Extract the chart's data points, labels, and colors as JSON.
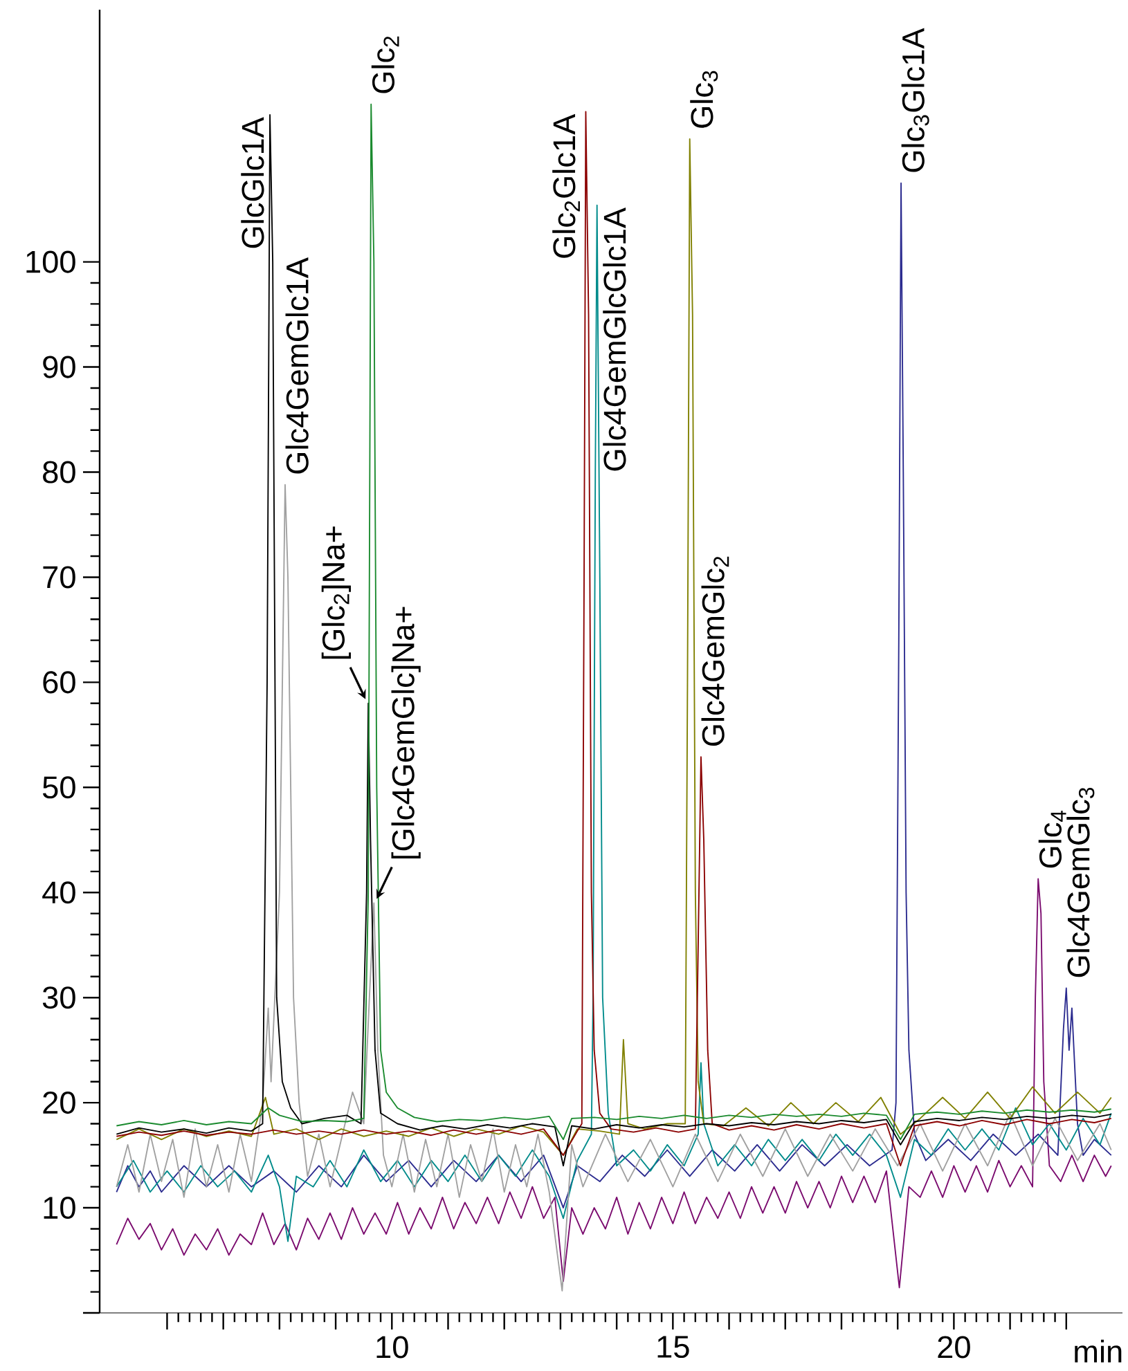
{
  "chart_data": {
    "type": "line",
    "xlabel": "min",
    "xlim": [
      4.8,
      23
    ],
    "ylim": [
      0,
      124
    ],
    "xticks": [
      {
        "value": 6,
        "label": null
      },
      {
        "value": 7,
        "label": null
      },
      {
        "value": 8,
        "label": null
      },
      {
        "value": 9,
        "label": null
      },
      10,
      {
        "value": 11,
        "label": null
      },
      {
        "value": 12,
        "label": null
      },
      {
        "value": 13,
        "label": null
      },
      {
        "value": 14,
        "label": null
      },
      15,
      {
        "value": 16,
        "label": null
      },
      {
        "value": 17,
        "label": null
      },
      {
        "value": 18,
        "label": null
      },
      {
        "value": 19,
        "label": null
      },
      20,
      {
        "value": 21,
        "label": null
      },
      {
        "value": 22,
        "label": null
      }
    ],
    "yticks": [
      {
        "value": 0,
        "label": null
      },
      10,
      20,
      30,
      40,
      50,
      60,
      70,
      80,
      90,
      100
    ],
    "annotations": [
      {
        "text": "GlcGlc1A",
        "x": 7.83,
        "y": 114
      },
      {
        "text": "Glc4GemGlc1A",
        "x": 8.1,
        "y": 78.8
      },
      {
        "text": "Glc$_{2}$",
        "x": 9.63,
        "y": 115
      },
      {
        "text": "[Glc$_{2}$]Na+",
        "x": 9.58,
        "y": 58
      },
      {
        "text": "[Glc4GemGlc]Na+",
        "x": 9.68,
        "y": 39
      },
      {
        "text": "Glc$_{2}$Glc1A",
        "x": 13.45,
        "y": 114.3
      },
      {
        "text": "Glc4GemGlcGlc1A",
        "x": 13.65,
        "y": 105.4
      },
      {
        "text": "Glc$_{3}$",
        "x": 15.3,
        "y": 111.7
      },
      {
        "text": "Glc4GemGlc$_{2}$",
        "x": 15.5,
        "y": 52.9
      },
      {
        "text": "Glc$_{3}$Glc1A",
        "x": 19.06,
        "y": 107.5
      },
      {
        "text": "Glc$_{4}$",
        "x": 21.5,
        "y": 41.3
      },
      {
        "text": "Glc4GemGlc$_{3}$",
        "x": 22.0,
        "y": 30.9
      }
    ],
    "series": [
      {
        "color": "#7a0a6e",
        "x": [
          5.1,
          5.3,
          5.5,
          5.7,
          5.9,
          6.1,
          6.3,
          6.5,
          6.7,
          6.9,
          7.1,
          7.3,
          7.5,
          7.7,
          7.9,
          8.1,
          8.3,
          8.5,
          8.7,
          8.9,
          9.1,
          9.3,
          9.5,
          9.7,
          9.9,
          10.1,
          10.3,
          10.5,
          10.7,
          10.9,
          11.1,
          11.3,
          11.5,
          11.7,
          11.9,
          12.1,
          12.3,
          12.5,
          12.7,
          12.9,
          13.05,
          13.2,
          13.4,
          13.6,
          13.8,
          14.0,
          14.2,
          14.4,
          14.6,
          14.8,
          15.0,
          15.2,
          15.4,
          15.6,
          15.8,
          16.0,
          16.2,
          16.4,
          16.6,
          16.8,
          17.0,
          17.2,
          17.4,
          17.6,
          17.8,
          18.0,
          18.2,
          18.4,
          18.6,
          18.8,
          19.03,
          19.2,
          19.4,
          19.6,
          19.8,
          20.0,
          20.2,
          20.4,
          20.6,
          20.8,
          21.0,
          21.2,
          21.4,
          21.45,
          21.5,
          21.55,
          21.6,
          21.7,
          21.9,
          22.1,
          22.3,
          22.5,
          22.7,
          22.8
        ],
        "values": [
          6.5,
          9,
          7,
          8.5,
          6,
          8,
          5.5,
          7.5,
          6,
          8,
          5.5,
          7.5,
          6.5,
          9.5,
          6.5,
          8.5,
          6,
          9,
          7,
          9.5,
          7,
          10,
          7.5,
          9.5,
          7.5,
          10.5,
          7.5,
          10,
          8,
          11,
          8,
          10.5,
          8.5,
          11,
          8.5,
          11.5,
          9,
          12,
          9,
          11,
          3,
          10,
          7.5,
          10,
          8,
          11,
          7.5,
          10.5,
          8,
          11,
          8.5,
          11.5,
          8.5,
          11,
          9,
          11.5,
          9,
          12,
          9.5,
          12,
          9.5,
          12.5,
          10,
          12.5,
          10,
          13,
          10.5,
          13,
          10.5,
          13.5,
          2.4,
          12,
          11,
          13.5,
          11,
          14,
          11.5,
          14,
          11.5,
          14.5,
          12,
          14,
          12,
          30,
          41.3,
          38,
          22,
          14,
          12.5,
          15,
          12.5,
          15,
          13,
          14
        ]
      },
      {
        "color": "#2b2b8f",
        "x": [
          5.1,
          5.3,
          5.5,
          5.7,
          5.9,
          6.3,
          6.7,
          7.1,
          7.5,
          7.9,
          8.3,
          8.7,
          9.1,
          9.5,
          9.9,
          10.3,
          10.7,
          11.1,
          11.5,
          11.9,
          12.3,
          12.7,
          13.05,
          13.3,
          13.7,
          14.1,
          14.5,
          14.9,
          15.3,
          15.7,
          16.1,
          16.5,
          16.9,
          17.3,
          17.7,
          18.1,
          18.5,
          18.9,
          18.97,
          19.02,
          19.06,
          19.1,
          19.15,
          19.2,
          19.3,
          19.5,
          19.9,
          20.3,
          20.7,
          21.1,
          21.5,
          21.85,
          21.95,
          22.0,
          22.05,
          22.1,
          22.2,
          22.3,
          22.5,
          22.8
        ],
        "values": [
          11.5,
          14,
          12,
          13.5,
          11.5,
          14,
          12,
          14,
          12,
          13.5,
          11.5,
          14,
          12,
          15,
          12.5,
          14.5,
          12,
          14.5,
          12.5,
          15,
          12.5,
          15,
          10,
          14,
          12.5,
          15,
          13,
          15.5,
          13,
          15.5,
          13.5,
          16,
          13.5,
          16,
          14,
          16,
          14,
          15.5,
          20,
          64,
          107.5,
          80,
          40,
          25,
          17,
          14.5,
          16.5,
          14.5,
          17,
          15,
          17,
          15,
          27,
          30.9,
          25,
          29,
          18,
          15,
          16.5,
          15
        ]
      },
      {
        "color": "#008b8b",
        "x": [
          5.1,
          5.4,
          5.7,
          6.0,
          6.3,
          6.6,
          6.9,
          7.2,
          7.5,
          7.8,
          8.0,
          8.15,
          8.3,
          8.6,
          8.9,
          9.2,
          9.5,
          9.8,
          10.1,
          10.4,
          10.7,
          11.0,
          11.3,
          11.6,
          11.9,
          12.2,
          12.5,
          12.8,
          13.05,
          13.3,
          13.55,
          13.58,
          13.62,
          13.65,
          13.7,
          13.75,
          13.85,
          14.0,
          14.3,
          14.6,
          14.9,
          15.2,
          15.45,
          15.5,
          15.55,
          15.8,
          16.1,
          16.4,
          16.7,
          17.0,
          17.3,
          17.6,
          17.9,
          18.2,
          18.5,
          18.8,
          19.05,
          19.3,
          19.6,
          19.9,
          20.2,
          20.5,
          20.8,
          21.1,
          21.4,
          21.7,
          22.0,
          22.3,
          22.6,
          22.8
        ],
        "values": [
          12,
          14.5,
          11.5,
          13.5,
          11.5,
          14,
          12,
          13.5,
          11.5,
          15,
          12,
          6.8,
          13,
          12,
          14.5,
          12,
          15.5,
          12.5,
          14.5,
          12,
          14.5,
          12.5,
          15,
          12.5,
          15,
          13,
          15.5,
          13,
          9,
          14.5,
          17,
          30,
          80,
          105.4,
          70,
          30,
          19,
          14,
          15.5,
          13.5,
          16,
          14,
          17,
          23.8,
          18,
          14,
          16,
          14,
          16.5,
          14.5,
          16.5,
          14.5,
          17,
          15,
          17,
          15,
          11,
          16.5,
          15,
          17.5,
          15.5,
          17.5,
          15.5,
          19.5,
          16,
          18,
          15.5,
          18.5,
          16,
          19
        ]
      },
      {
        "color": "#a0a0a0",
        "x": [
          5.1,
          5.3,
          5.5,
          5.7,
          5.9,
          6.1,
          6.3,
          6.5,
          6.7,
          6.9,
          7.1,
          7.3,
          7.5,
          7.7,
          7.8,
          7.85,
          8.0,
          8.1,
          8.15,
          8.25,
          8.35,
          8.5,
          8.7,
          8.9,
          9.1,
          9.3,
          9.5,
          9.6,
          9.68,
          9.75,
          9.85,
          10.0,
          10.2,
          10.4,
          10.6,
          10.8,
          11.0,
          11.2,
          11.4,
          11.6,
          11.8,
          12.0,
          12.2,
          12.4,
          12.6,
          12.8,
          13.03,
          13.2,
          13.4,
          13.8,
          14.2,
          14.6,
          15.0,
          15.4,
          15.8,
          16.2,
          16.6,
          17.0,
          17.4,
          17.8,
          18.2,
          18.6,
          19.0,
          19.4,
          19.8,
          20.2,
          20.6,
          21.0,
          21.4,
          21.8,
          22.2,
          22.6,
          22.8
        ],
        "values": [
          12,
          16,
          11.5,
          17,
          12.5,
          16.5,
          11,
          17.5,
          12,
          16,
          11.5,
          17,
          12.5,
          20,
          29,
          22,
          40,
          78.8,
          70,
          30,
          20,
          13,
          17,
          12,
          16.5,
          21,
          18,
          30,
          39,
          25,
          15,
          12,
          17,
          11.5,
          16.5,
          12,
          17,
          11,
          16,
          12.5,
          17.5,
          11.5,
          16,
          12,
          17,
          11.5,
          2.1,
          16,
          12,
          17,
          12.5,
          16.5,
          12,
          17,
          12.5,
          17,
          13,
          17.5,
          13,
          17,
          13.5,
          17.5,
          14,
          18,
          13.5,
          18,
          14,
          19,
          14,
          18.5,
          14.5,
          18,
          15.5
        ]
      },
      {
        "color": "#808000",
        "x": [
          5.1,
          5.5,
          5.9,
          6.3,
          6.7,
          7.1,
          7.5,
          7.75,
          7.9,
          8.3,
          8.7,
          9.1,
          9.5,
          9.9,
          10.3,
          10.7,
          11.1,
          11.5,
          11.9,
          12.3,
          12.7,
          13.05,
          13.3,
          13.7,
          14.05,
          14.12,
          14.2,
          14.5,
          14.9,
          15.22,
          15.26,
          15.3,
          15.35,
          15.4,
          15.45,
          15.55,
          15.9,
          16.3,
          16.7,
          17.1,
          17.5,
          17.9,
          18.3,
          18.7,
          19.05,
          19.4,
          19.8,
          20.2,
          20.6,
          21.0,
          21.4,
          21.8,
          22.2,
          22.6,
          22.8
        ],
        "values": [
          16.5,
          17.5,
          16.5,
          17.5,
          16.8,
          17.3,
          16.8,
          20.5,
          17,
          17.5,
          16.5,
          17.5,
          16.8,
          17.3,
          16.8,
          17.6,
          16.8,
          17.5,
          17,
          17.8,
          17.2,
          15,
          17.5,
          17.3,
          17,
          26,
          18,
          17.5,
          18,
          18,
          60,
          111.7,
          95,
          40,
          22,
          18,
          17.8,
          19.5,
          17.8,
          20,
          18,
          20,
          18.2,
          20.5,
          17,
          18.5,
          20.5,
          18.5,
          21,
          18.5,
          21.5,
          19,
          21,
          19,
          20.5
        ]
      },
      {
        "color": "#8b0000",
        "x": [
          5.1,
          5.5,
          5.9,
          6.3,
          6.7,
          7.1,
          7.5,
          7.9,
          8.3,
          8.7,
          9.1,
          9.5,
          9.9,
          10.3,
          10.7,
          11.1,
          11.5,
          11.9,
          12.3,
          12.7,
          13.05,
          13.3,
          13.38,
          13.42,
          13.45,
          13.5,
          13.55,
          13.6,
          13.7,
          13.9,
          14.3,
          14.7,
          15.1,
          15.4,
          15.45,
          15.5,
          15.55,
          15.62,
          15.7,
          16.0,
          16.4,
          16.8,
          17.2,
          17.6,
          18.0,
          18.4,
          18.8,
          19.05,
          19.3,
          19.7,
          20.1,
          20.5,
          20.9,
          21.3,
          21.7,
          22.1,
          22.5,
          22.8
        ],
        "values": [
          16.8,
          17.2,
          16.9,
          17.3,
          16.9,
          17.2,
          17,
          17.4,
          17,
          17.3,
          17,
          17.4,
          17,
          17.3,
          16.9,
          17.4,
          17,
          17.4,
          17,
          17.5,
          15,
          17.3,
          18,
          70,
          114.3,
          95,
          40,
          25,
          19,
          17.5,
          17.2,
          17.6,
          17.2,
          17.5,
          35,
          52.9,
          45,
          25,
          18,
          17.4,
          17.8,
          17.4,
          17.9,
          17.5,
          18,
          17.6,
          18,
          14,
          17.8,
          18.2,
          17.8,
          18.3,
          17.9,
          18.4,
          18,
          18.4,
          18.1,
          18.5
        ]
      },
      {
        "color": "#000000",
        "x": [
          5.1,
          5.5,
          5.9,
          6.3,
          6.7,
          7.1,
          7.5,
          7.7,
          7.78,
          7.83,
          7.88,
          7.95,
          8.05,
          8.2,
          8.4,
          8.8,
          9.2,
          9.45,
          9.55,
          9.58,
          9.62,
          9.7,
          9.8,
          10.1,
          10.5,
          10.9,
          11.3,
          11.7,
          12.1,
          12.5,
          12.9,
          13.05,
          13.2,
          13.6,
          14.0,
          14.4,
          14.8,
          15.2,
          15.6,
          16.0,
          16.4,
          16.8,
          17.2,
          17.6,
          18.0,
          18.4,
          18.8,
          19.05,
          19.3,
          19.7,
          20.1,
          20.5,
          20.9,
          21.3,
          21.7,
          22.1,
          22.5,
          22.8
        ],
        "values": [
          17,
          17.6,
          17.2,
          17.5,
          17.1,
          17.6,
          17.3,
          18,
          60,
          114,
          100,
          30,
          22,
          19.5,
          18,
          18.5,
          18.8,
          18,
          40,
          58,
          45,
          25,
          19,
          18,
          17.4,
          17.8,
          17.5,
          17.9,
          17.6,
          18,
          17.7,
          14,
          17.8,
          17.5,
          17.9,
          17.6,
          17.9,
          17.7,
          18,
          17.8,
          18.1,
          17.9,
          18.2,
          18,
          18.3,
          18.1,
          18.4,
          16,
          18.2,
          18.5,
          18.3,
          18.6,
          18.4,
          18.7,
          18.5,
          18.8,
          18.6,
          18.9
        ]
      },
      {
        "color": "#1a8a2e",
        "x": [
          5.1,
          5.5,
          5.9,
          6.3,
          6.7,
          7.1,
          7.5,
          7.8,
          8.0,
          8.4,
          8.8,
          9.2,
          9.5,
          9.58,
          9.63,
          9.68,
          9.73,
          9.8,
          9.9,
          10.1,
          10.4,
          10.8,
          11.2,
          11.6,
          12.0,
          12.4,
          12.8,
          13.05,
          13.2,
          13.6,
          14.0,
          14.4,
          14.8,
          15.2,
          15.6,
          16.0,
          16.4,
          16.8,
          17.2,
          17.6,
          18.0,
          18.4,
          18.8,
          19.05,
          19.3,
          19.7,
          20.1,
          20.5,
          20.9,
          21.3,
          21.7,
          22.1,
          22.5,
          22.8
        ],
        "values": [
          17.8,
          18.2,
          17.9,
          18.3,
          17.9,
          18.2,
          18,
          19.5,
          18.8,
          18.2,
          18.3,
          18.2,
          18.5,
          40,
          115,
          100,
          50,
          25,
          21,
          19.5,
          18.6,
          18.2,
          18.4,
          18.3,
          18.6,
          18.4,
          18.7,
          16.5,
          18.5,
          18.6,
          18.4,
          18.7,
          18.5,
          18.8,
          18.5,
          18.8,
          18.6,
          18.9,
          18.7,
          18.9,
          18.7,
          19,
          18.8,
          16.5,
          18.9,
          19.1,
          18.9,
          19.2,
          19,
          19.3,
          19.1,
          19.3,
          19.1,
          19.4
        ]
      }
    ]
  }
}
